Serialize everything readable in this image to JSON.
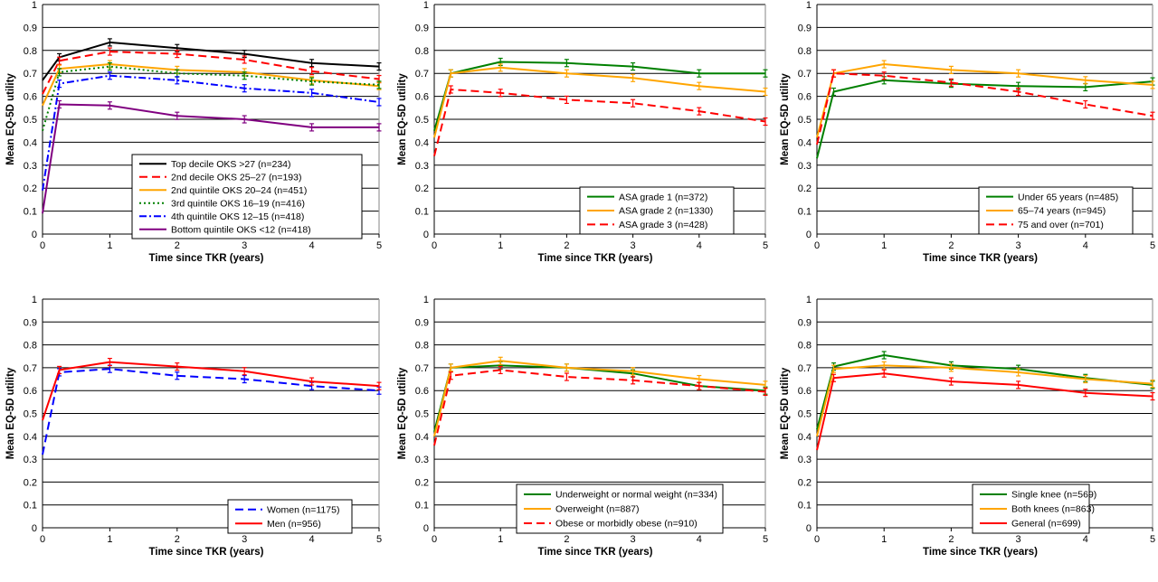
{
  "chart_data": [
    {
      "type": "line",
      "xlabel": "Time since TKR (years)",
      "ylabel": "Mean EQ-5D utility",
      "xlim": [
        0,
        5
      ],
      "ylim": [
        0,
        1
      ],
      "xticks": [
        "0",
        "1",
        "2",
        "3",
        "4",
        "5"
      ],
      "yticks": [
        "0",
        "0.1",
        "0.2",
        "0.3",
        "0.4",
        "0.5",
        "0.6",
        "0.7",
        "0.8",
        "0.9",
        "1"
      ],
      "grid": "horizontal",
      "legend_position": "bottom-center",
      "x": [
        0,
        0.25,
        1,
        2,
        3,
        4,
        5
      ],
      "series": [
        {
          "name": "Top decile OKS >27 (n=234)",
          "color": "#000000",
          "dash": "solid",
          "values": [
            0.67,
            0.77,
            0.835,
            0.81,
            0.785,
            0.745,
            0.73
          ]
        },
        {
          "name": "2nd decile OKS 25–27 (n=193)",
          "color": "#ff0000",
          "dash": "dashed",
          "values": [
            0.61,
            0.755,
            0.795,
            0.785,
            0.76,
            0.71,
            0.675
          ]
        },
        {
          "name": "2nd quintile OKS 20–24 (n=451)",
          "color": "#ffa500",
          "dash": "solid",
          "values": [
            0.56,
            0.72,
            0.74,
            0.715,
            0.705,
            0.67,
            0.645
          ]
        },
        {
          "name": "3rd quintile OKS 16–19 (n=416)",
          "color": "#008000",
          "dash": "dotted",
          "values": [
            0.45,
            0.705,
            0.73,
            0.7,
            0.69,
            0.665,
            0.65
          ]
        },
        {
          "name": "4th quintile OKS 12–15 (n=418)",
          "color": "#0000ff",
          "dash": "dashdot",
          "values": [
            0.19,
            0.655,
            0.69,
            0.67,
            0.635,
            0.615,
            0.575
          ]
        },
        {
          "name": "Bottom quintile OKS <12 (n=418)",
          "color": "#800080",
          "dash": "solid",
          "values": [
            0.09,
            0.565,
            0.56,
            0.515,
            0.5,
            0.465,
            0.465
          ]
        }
      ]
    },
    {
      "type": "line",
      "xlabel": "Time since TKR (years)",
      "ylabel": "Mean EQ-5D utility",
      "xlim": [
        0,
        5
      ],
      "ylim": [
        0,
        1
      ],
      "xticks": [
        "0",
        "1",
        "2",
        "3",
        "4",
        "5"
      ],
      "yticks": [
        "0",
        "0.1",
        "0.2",
        "0.3",
        "0.4",
        "0.5",
        "0.6",
        "0.7",
        "0.8",
        "0.9",
        "1"
      ],
      "grid": "horizontal",
      "legend_position": "bottom-right",
      "x": [
        0,
        0.25,
        1,
        2,
        3,
        4,
        5
      ],
      "series": [
        {
          "name": "ASA grade 1 (n=372)",
          "color": "#008000",
          "dash": "solid",
          "values": [
            0.45,
            0.7,
            0.75,
            0.745,
            0.73,
            0.7,
            0.7
          ]
        },
        {
          "name": "ASA grade 2 (n=1330)",
          "color": "#ffa500",
          "dash": "solid",
          "values": [
            0.42,
            0.7,
            0.725,
            0.7,
            0.68,
            0.645,
            0.62
          ]
        },
        {
          "name": "ASA grade 3 (n=428)",
          "color": "#ff0000",
          "dash": "dashed",
          "values": [
            0.34,
            0.63,
            0.615,
            0.585,
            0.57,
            0.535,
            0.49
          ]
        }
      ]
    },
    {
      "type": "line",
      "xlabel": "Time since TKR (years)",
      "ylabel": "Mean EQ-5D utility",
      "xlim": [
        0,
        5
      ],
      "ylim": [
        0,
        1
      ],
      "xticks": [
        "0",
        "1",
        "2",
        "3",
        "4",
        "5"
      ],
      "yticks": [
        "0",
        "0.1",
        "0.2",
        "0.3",
        "0.4",
        "0.5",
        "0.6",
        "0.7",
        "0.8",
        "0.9",
        "1"
      ],
      "grid": "horizontal",
      "legend_position": "bottom-right",
      "x": [
        0,
        0.25,
        1,
        2,
        3,
        4,
        5
      ],
      "series": [
        {
          "name": "Under 65 years (n=485)",
          "color": "#008000",
          "dash": "solid",
          "values": [
            0.33,
            0.62,
            0.67,
            0.655,
            0.645,
            0.64,
            0.665
          ]
        },
        {
          "name": "65–74 years (n=945)",
          "color": "#ffa500",
          "dash": "solid",
          "values": [
            0.42,
            0.7,
            0.74,
            0.715,
            0.7,
            0.67,
            0.65
          ]
        },
        {
          "name": "75 and over (n=701)",
          "color": "#ff0000",
          "dash": "dashed",
          "values": [
            0.39,
            0.7,
            0.69,
            0.66,
            0.62,
            0.565,
            0.515
          ]
        }
      ]
    },
    {
      "type": "line",
      "xlabel": "Time since TKR (years)",
      "ylabel": "Mean EQ-5D utility",
      "xlim": [
        0,
        5
      ],
      "ylim": [
        0,
        1
      ],
      "xticks": [
        "0",
        "1",
        "2",
        "3",
        "4",
        "5"
      ],
      "yticks": [
        "0",
        "0.1",
        "0.2",
        "0.3",
        "0.4",
        "0.5",
        "0.6",
        "0.7",
        "0.8",
        "0.9",
        "1"
      ],
      "grid": "horizontal",
      "legend_position": "bottom-right",
      "x": [
        0,
        0.25,
        1,
        2,
        3,
        4,
        5
      ],
      "series": [
        {
          "name": "Women (n=1175)",
          "color": "#0000ff",
          "dash": "dashed",
          "values": [
            0.32,
            0.68,
            0.695,
            0.665,
            0.65,
            0.62,
            0.6
          ]
        },
        {
          "name": "Men (n=956)",
          "color": "#ff0000",
          "dash": "solid",
          "values": [
            0.47,
            0.69,
            0.725,
            0.705,
            0.685,
            0.64,
            0.62
          ]
        }
      ]
    },
    {
      "type": "line",
      "xlabel": "Time since TKR (years)",
      "ylabel": "Mean EQ-5D utility",
      "xlim": [
        0,
        5
      ],
      "ylim": [
        0,
        1
      ],
      "xticks": [
        "0",
        "1",
        "2",
        "3",
        "4",
        "5"
      ],
      "yticks": [
        "0",
        "0.1",
        "0.2",
        "0.3",
        "0.4",
        "0.5",
        "0.6",
        "0.7",
        "0.8",
        "0.9",
        "1"
      ],
      "grid": "horizontal",
      "legend_position": "bottom-right",
      "x": [
        0,
        0.25,
        1,
        2,
        3,
        4,
        5
      ],
      "series": [
        {
          "name": "Underweight or normal weight (n=334)",
          "color": "#008000",
          "dash": "solid",
          "values": [
            0.42,
            0.7,
            0.71,
            0.7,
            0.675,
            0.62,
            0.6
          ]
        },
        {
          "name": "Overweight   (n=887)",
          "color": "#ffa500",
          "dash": "solid",
          "values": [
            0.4,
            0.7,
            0.73,
            0.7,
            0.685,
            0.65,
            0.625
          ]
        },
        {
          "name": "Obese or morbidly obese (n=910)",
          "color": "#ff0000",
          "dash": "dashed",
          "values": [
            0.36,
            0.665,
            0.69,
            0.66,
            0.645,
            0.62,
            0.595
          ]
        }
      ]
    },
    {
      "type": "line",
      "xlabel": "Time since TKR (years)",
      "ylabel": "Mean EQ-5D utility",
      "xlim": [
        0,
        5
      ],
      "ylim": [
        0,
        1
      ],
      "xticks": [
        "0",
        "1",
        "2",
        "3",
        "4",
        "5"
      ],
      "yticks": [
        "0",
        "0.1",
        "0.2",
        "0.3",
        "0.4",
        "0.5",
        "0.6",
        "0.7",
        "0.8",
        "0.9",
        "1"
      ],
      "grid": "horizontal",
      "legend_position": "bottom-right",
      "x": [
        0,
        0.25,
        1,
        2,
        3,
        4,
        5
      ],
      "series": [
        {
          "name": "Single knee (n=569)",
          "color": "#008000",
          "dash": "solid",
          "values": [
            0.43,
            0.705,
            0.755,
            0.71,
            0.695,
            0.655,
            0.625
          ]
        },
        {
          "name": "Both knees (n=863)",
          "color": "#ffa500",
          "dash": "solid",
          "values": [
            0.4,
            0.695,
            0.71,
            0.7,
            0.68,
            0.65,
            0.63
          ]
        },
        {
          "name": "General (n=699)",
          "color": "#ff0000",
          "dash": "solid",
          "values": [
            0.34,
            0.655,
            0.675,
            0.64,
            0.625,
            0.59,
            0.575
          ]
        }
      ]
    }
  ]
}
